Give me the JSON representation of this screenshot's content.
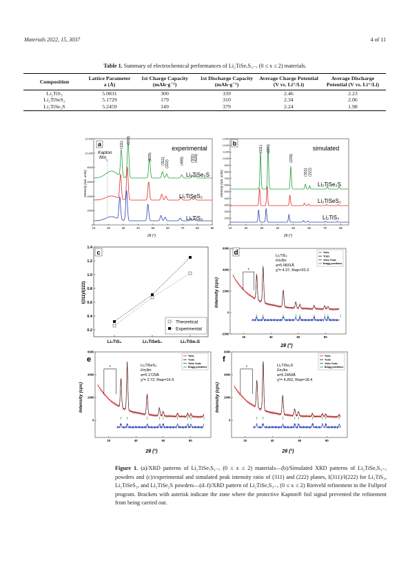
{
  "header": {
    "journal": "Materials 2022, 15, 3037",
    "page": "4 of 11"
  },
  "table": {
    "caption_label": "Table 1.",
    "caption_text": "Summary of electrochemical performances of Li₂TiSeₓS₃₋ₓ (0 ≤ x ≤ 2) materials.",
    "columns": [
      "Composition",
      "Lattice Parameter a (Å)",
      "1st Charge Capacity (mAh·g⁻¹)",
      "1st Discharge Capacity (mAh·g⁻¹)",
      "Average Charge Potential (V vs. Li⁺/Li)",
      "Average Discharge Potential (V vs. Li⁺/Li)"
    ],
    "rows": [
      [
        "Li₂TiS₃",
        "5.0831",
        "300",
        "339",
        "2.46",
        "2.23"
      ],
      [
        "Li₂TiSeS₂",
        "5.1729",
        "179",
        "310",
        "2.34",
        "2.06"
      ],
      [
        "Li₂TiSe₂S",
        "5.2459",
        "149",
        "379",
        "2.24",
        "1.98"
      ]
    ]
  },
  "figure": {
    "panel_a": {
      "letter": "a",
      "tag": "experimental",
      "film_label": "Kapton film",
      "ylabel": "Intensity (arb. units)",
      "xlabel": "2θ (°)",
      "xticks": [
        "10",
        "20",
        "30",
        "40",
        "50",
        "60",
        "70",
        "80",
        "90"
      ],
      "yticks": [
        "0",
        "2000",
        "4000",
        "6000",
        "8000",
        "10,000",
        "12,000"
      ],
      "peaks": [
        "(111)",
        "(200)",
        "(220)",
        "(311)",
        "(222)",
        "(400)",
        "(331)",
        "(420)"
      ],
      "series": [
        "Li₂TiSe₂S",
        "Li₂TiSeS₂",
        "Li₂TiS₃"
      ],
      "colors": [
        "#1f9e3a",
        "#e0282a",
        "#2a3fb0"
      ]
    },
    "panel_b": {
      "letter": "b",
      "tag": "simulated",
      "ylabel": "Intensity (arb. units)",
      "xlabel": "2θ (°)",
      "xticks": [
        "10",
        "20",
        "30",
        "40",
        "50",
        "60",
        "70",
        "80"
      ],
      "yticks": [
        "0",
        "1000",
        "2000",
        "3000",
        "4000",
        "5000",
        "6000",
        "7000",
        "8000",
        "9000",
        "10,000",
        "11,000",
        "12,000",
        "13,000"
      ],
      "peaks": [
        "(111)",
        "(200)",
        "(220)",
        "(311)",
        "(222)"
      ],
      "series": [
        "Li₂TiSe₂S",
        "Li₂TiSeS₂",
        "Li₂TiS₃"
      ]
    },
    "panel_c": {
      "letter": "c",
      "ylabel": "I(311)/I(222)",
      "categories": [
        "Li₂TiS₃",
        "Li₂TiSeS₂",
        "Li₂TiSe₂S"
      ],
      "yticks": [
        "0.2",
        "0.4",
        "0.6",
        "0.8",
        "1.0",
        "1.2",
        "1.4"
      ],
      "legend": [
        "Theoretical",
        "Experimental"
      ],
      "theoretical": [
        0.26,
        0.67,
        1.02
      ],
      "experimental": [
        0.32,
        0.71,
        1.25
      ],
      "ylim": [
        0.1,
        1.4
      ]
    },
    "panel_d": {
      "letter": "d",
      "ylabel": "Intensity (cps)",
      "xlabel": "2θ (°)",
      "info": [
        "Li₂TiS₃",
        "Fm3̄m",
        "a=5.0831Å",
        "χ²= 4.37, Rwp=20.3"
      ],
      "yticks": [
        "6000",
        "4000",
        "2000",
        "0",
        "-2000"
      ],
      "xticks": [
        "20",
        "40",
        "60",
        "80"
      ],
      "legend": [
        "Yobs",
        "Ycalc",
        "Yobs-Ycalc",
        "Bragg positions"
      ],
      "asterisk": "*"
    },
    "panel_e": {
      "letter": "e",
      "ylabel": "Intensity (cps)",
      "xlabel": "2θ (°)",
      "info": [
        "Li₂TiSeS₂",
        "Fm3̄m",
        "a=5.1729Å",
        "χ²= 2.72, Rwp=16.9"
      ],
      "yticks": [
        "6000",
        "4000",
        "2000",
        "0"
      ],
      "xticks": [
        "20",
        "40",
        "60",
        "80"
      ],
      "legend": [
        "Yobs",
        "Ycalc",
        "Yobs-Ycalc",
        "Bragg positions"
      ],
      "asterisk": "*"
    },
    "panel_f": {
      "letter": "f",
      "ylabel": "Intensity (cps)",
      "xlabel": "2θ (°)",
      "info": [
        "Li₂TiSe₂S",
        "Fm3̄m",
        "a=5.2459Å",
        "χ²= 4.262, Rwp=18.4"
      ],
      "yticks": [
        "6000",
        "4000",
        "2000",
        "0"
      ],
      "xticks": [
        "20",
        "40",
        "60",
        "80"
      ],
      "legend": [
        "Yobs",
        "Ycalc",
        "Yobs-Ycalc",
        "Bragg positions"
      ],
      "asterisk": "*"
    }
  },
  "figure_caption": {
    "label": "Figure 1.",
    "text": "(a)/XRD patterns of Li₂TiSeₓS₃₋ₓ (0 ≤ x ≤ 2) materials—(b)/Simulated XRD patterns of Li₂TiSeₓS₃₋ₓ powders and (c)/experimental and simulated peak intensity ratio of (311) and (222) planes, I(311)/I(222) for Li₂TiS₃, Li₂TiSeS₂, and Li₂TiSe₂S powders—(d–f)/XRD pattern of Li₂TiSeₓS₃₋ₓ (0 ≤ x ≤ 2) Rietveld refinement in the Fullprof program. Brackets with asterisk indicate the zone where the protective Kapton® foil signal prevented the refinement from being carried out."
  }
}
